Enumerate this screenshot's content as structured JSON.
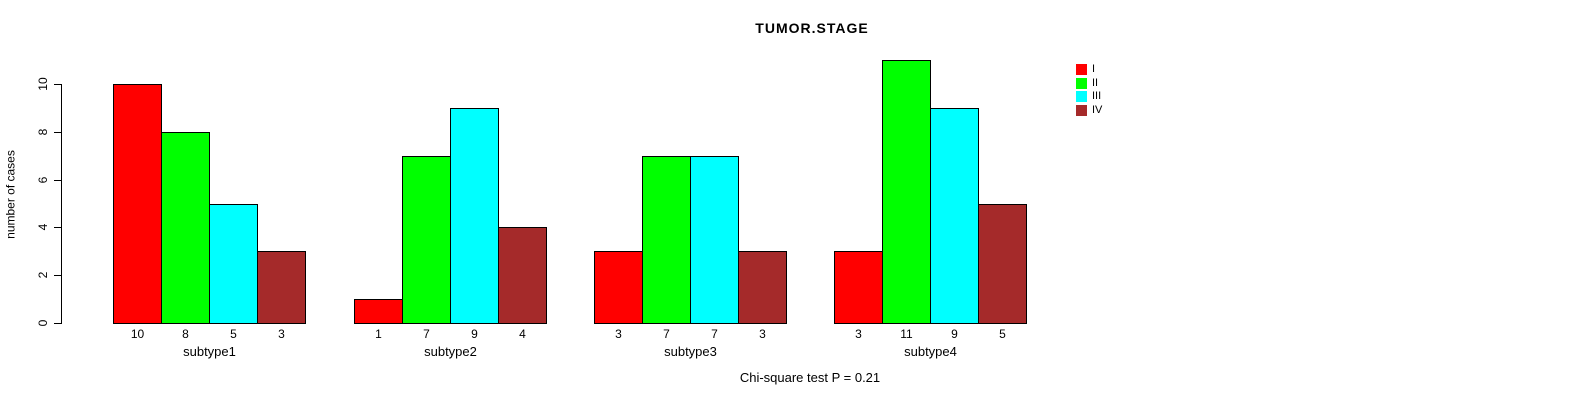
{
  "title": "TUMOR.STAGE",
  "ylabel": "number of cases",
  "footer": "Chi-square test P = 0.21",
  "chart_data": {
    "type": "bar",
    "grouped": true,
    "title": "TUMOR.STAGE",
    "xlabel": "",
    "ylabel": "number of cases",
    "categories": [
      "subtype1",
      "subtype2",
      "subtype3",
      "subtype4"
    ],
    "series": [
      {
        "name": "I",
        "color": "#FF0000",
        "values": [
          10,
          1,
          3,
          3
        ]
      },
      {
        "name": "II",
        "color": "#00FF00",
        "values": [
          8,
          7,
          7,
          11
        ]
      },
      {
        "name": "III",
        "color": "#00FFFF",
        "values": [
          5,
          9,
          7,
          9
        ]
      },
      {
        "name": "IV",
        "color": "#A52A2A",
        "values": [
          3,
          4,
          3,
          5
        ]
      }
    ],
    "bar_value_labels": [
      [
        "10",
        "8",
        "5",
        "3"
      ],
      [
        "1",
        "7",
        "9",
        "4"
      ],
      [
        "3",
        "7",
        "7",
        "3"
      ],
      [
        "3",
        "11",
        "9",
        "5"
      ]
    ],
    "yticks": [
      0,
      2,
      4,
      6,
      8,
      10
    ],
    "ylim": [
      0,
      10
    ],
    "grid": false,
    "legend_position": "top-right",
    "legend": [
      {
        "label": "I",
        "color": "#FF0000"
      },
      {
        "label": "II",
        "color": "#00FF00"
      },
      {
        "label": "III",
        "color": "#00FFFF"
      },
      {
        "label": "IV",
        "color": "#A52A2A"
      }
    ],
    "annotation": "Chi-square test P = 0.21"
  }
}
